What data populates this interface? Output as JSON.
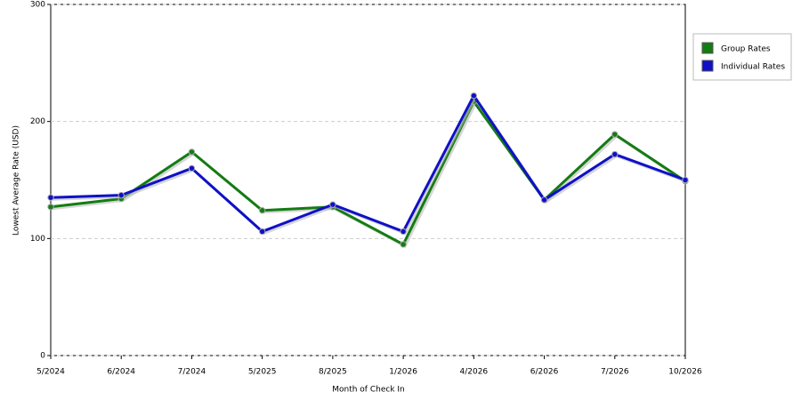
{
  "chart_data": {
    "type": "line",
    "x_label": "Month of Check In",
    "y_label": "Lowest Average Rate (USD)",
    "categories": [
      "5/2024",
      "6/2024",
      "7/2024",
      "5/2025",
      "8/2025",
      "1/2026",
      "4/2026",
      "6/2026",
      "7/2026",
      "10/2026"
    ],
    "series": [
      {
        "name": "Group Rates",
        "color": "#137c13",
        "values": [
          127,
          134,
          174,
          124,
          127,
          95,
          217,
          133,
          189,
          149
        ]
      },
      {
        "name": "Individual Rates",
        "color": "#1010c8",
        "values": [
          135,
          137,
          160,
          106,
          129,
          106,
          222,
          133,
          172,
          150
        ]
      }
    ],
    "ylim": [
      0,
      300
    ],
    "yticks": [
      0,
      100,
      200,
      300
    ],
    "grid": true,
    "legend": "right"
  }
}
